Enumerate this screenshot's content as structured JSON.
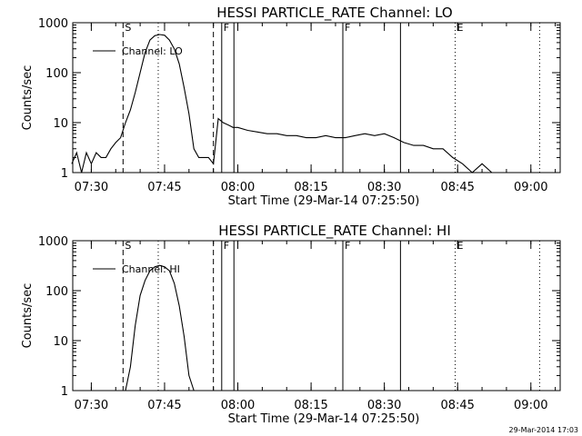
{
  "chart_data": [
    {
      "type": "line",
      "title": "HESSI PARTICLE_RATE Channel: LO",
      "xlabel": "Start Time (29-Mar-14 07:25:50)",
      "ylabel": "Counts/sec",
      "yscale": "log",
      "ylim": [
        1,
        1000
      ],
      "xlim_minutes_after_0730": [
        -3.8,
        96.0
      ],
      "y_tick_labels": [
        "1",
        "10",
        "100",
        "1000"
      ],
      "x_tick_labels": [
        "07:30",
        "07:45",
        "08:00",
        "08:15",
        "08:30",
        "08:45",
        "09:00"
      ],
      "legend": {
        "entries": [
          "Channel: LO"
        ],
        "position": "top-left"
      },
      "markers": {
        "S": "07:36",
        "F": "07:56",
        "E": "08:44"
      },
      "series": [
        {
          "name": "Channel: LO",
          "color": "#000000",
          "x": [
            "07:26",
            "07:27",
            "07:28",
            "07:29",
            "07:30",
            "07:31",
            "07:32",
            "07:33",
            "07:34",
            "07:35",
            "07:36",
            "07:37",
            "07:38",
            "07:39",
            "07:40",
            "07:41",
            "07:42",
            "07:43",
            "07:44",
            "07:45",
            "07:46",
            "07:47",
            "07:48",
            "07:49",
            "07:50",
            "07:51",
            "07:52",
            "07:53",
            "07:54",
            "07:55",
            "07:56",
            "07:57",
            "07:58",
            "07:59",
            "08:00",
            "08:02",
            "08:04",
            "08:06",
            "08:08",
            "08:10",
            "08:12",
            "08:14",
            "08:16",
            "08:18",
            "08:20",
            "08:22",
            "08:24",
            "08:26",
            "08:28",
            "08:30",
            "08:32",
            "08:34",
            "08:36",
            "08:38",
            "08:40",
            "08:42",
            "08:44",
            "08:46",
            "08:48",
            "08:50",
            "08:52",
            "08:54",
            "08:56",
            "08:58"
          ],
          "values": [
            1.5,
            2.5,
            1,
            2.5,
            1.5,
            2.5,
            2,
            2,
            3,
            4,
            5,
            10,
            18,
            40,
            100,
            250,
            450,
            550,
            580,
            560,
            450,
            300,
            150,
            50,
            15,
            3,
            2,
            2,
            2,
            1.5,
            12,
            10,
            9,
            8,
            8,
            7,
            6.5,
            6,
            6,
            5.5,
            5.5,
            5,
            5,
            5.5,
            5,
            5,
            5.5,
            6,
            5.5,
            6,
            5,
            4,
            3.5,
            3.5,
            3,
            3,
            2,
            1.5,
            1,
            1.5,
            1,
            1,
            1,
            1
          ]
        }
      ]
    },
    {
      "type": "line",
      "title": "HESSI PARTICLE_RATE Channel: HI",
      "xlabel": "Start Time (29-Mar-14 07:25:50)",
      "ylabel": "Counts/sec",
      "yscale": "log",
      "ylim": [
        1,
        1000
      ],
      "xlim_minutes_after_0730": [
        -3.8,
        96.0
      ],
      "y_tick_labels": [
        "1",
        "10",
        "100",
        "1000"
      ],
      "x_tick_labels": [
        "07:30",
        "07:45",
        "08:00",
        "08:15",
        "08:30",
        "08:45",
        "09:00"
      ],
      "legend": {
        "entries": [
          "Channel: HI"
        ],
        "position": "top-left"
      },
      "markers": {
        "S": "07:36",
        "F": "07:56",
        "E": "08:44"
      },
      "series": [
        {
          "name": "Channel: HI",
          "color": "#000000",
          "x": [
            "07:37",
            "07:38",
            "07:39",
            "07:40",
            "07:41",
            "07:42",
            "07:43",
            "07:44",
            "07:45",
            "07:46",
            "07:47",
            "07:48",
            "07:49",
            "07:50",
            "07:51"
          ],
          "values": [
            1,
            3,
            20,
            80,
            160,
            250,
            300,
            320,
            300,
            250,
            140,
            50,
            12,
            2,
            1
          ]
        }
      ]
    }
  ],
  "footer": {
    "timestamp": "29-Mar-2014 17:03"
  }
}
